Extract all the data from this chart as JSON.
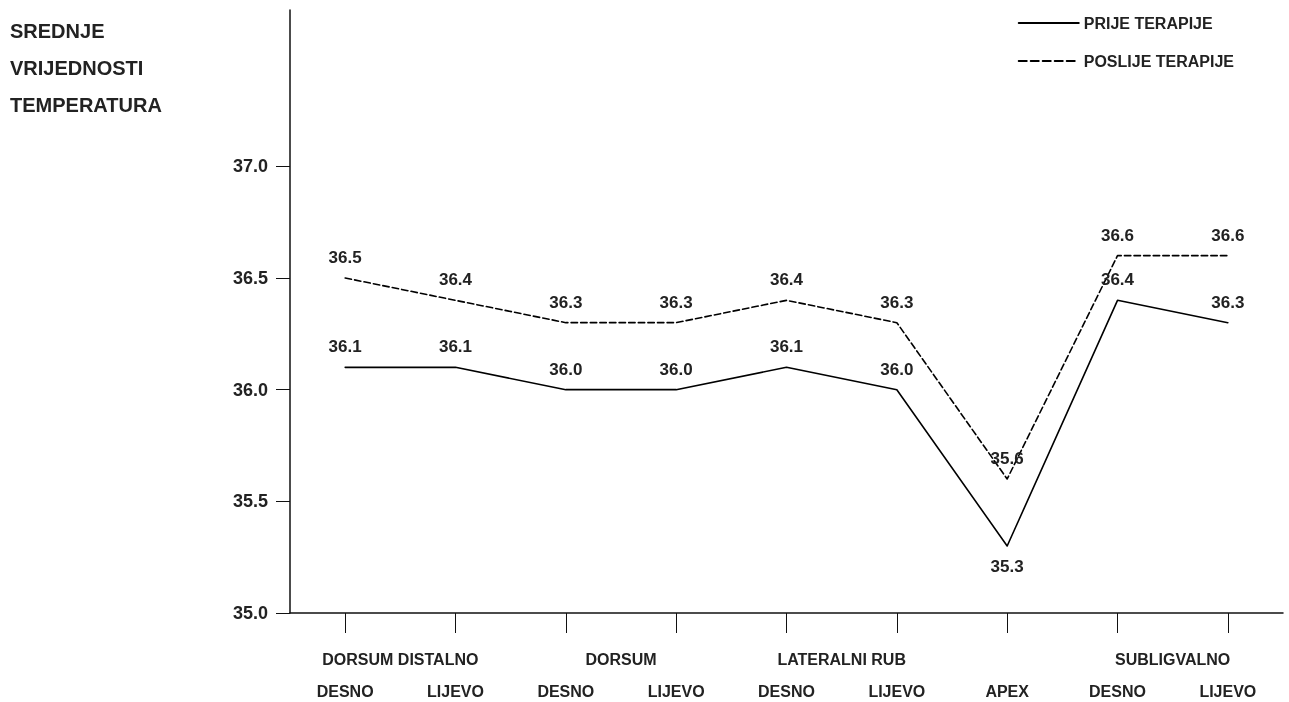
{
  "chart_data": {
    "type": "line",
    "ylabel": "SREDNJE\nVRIJEDNOSTI\nTEMPERATURA",
    "categories": [
      "DESNO",
      "LIJEVO",
      "DESNO",
      "LIJEVO",
      "DESNO",
      "LIJEVO",
      "APEX",
      "DESNO",
      "LIJEVO"
    ],
    "annotations": [
      "DORSUM DISTALNO",
      "DORSUM",
      "LATERALNI RUB",
      "SUBLIGVALNO"
    ],
    "series": [
      {
        "name": "PRIJE TERAPIJE",
        "color": "#000000",
        "line_style": "solid",
        "values": [
          36.1,
          36.1,
          36.0,
          36.0,
          36.1,
          36.0,
          35.3,
          36.4,
          36.3
        ],
        "value_labels": [
          "36.1",
          "36.1",
          "36.0",
          "36.0",
          "36.1",
          "36.0",
          "35.3",
          "36.4",
          "36.3"
        ]
      },
      {
        "name": "POSLIJE TERAPIJE",
        "color": "#000000",
        "line_style": "dashed",
        "values": [
          36.5,
          36.4,
          36.3,
          36.3,
          36.4,
          36.3,
          35.6,
          36.6,
          36.6
        ],
        "value_labels": [
          "36.5",
          "36.4",
          "36.3",
          "36.3",
          "36.4",
          "36.3",
          "35.6",
          "36.6",
          "36.6"
        ]
      }
    ],
    "ylim": [
      35,
      37.7
    ],
    "yticks": [
      {
        "value": 35,
        "label": "35.0"
      },
      {
        "value": 35.5,
        "label": "35.5"
      },
      {
        "value": 36,
        "label": "36.0"
      },
      {
        "value": 36.5,
        "label": "36.5"
      },
      {
        "value": 37,
        "label": "37.0"
      }
    ],
    "grid": false,
    "legend": "top right",
    "marker": "none"
  }
}
